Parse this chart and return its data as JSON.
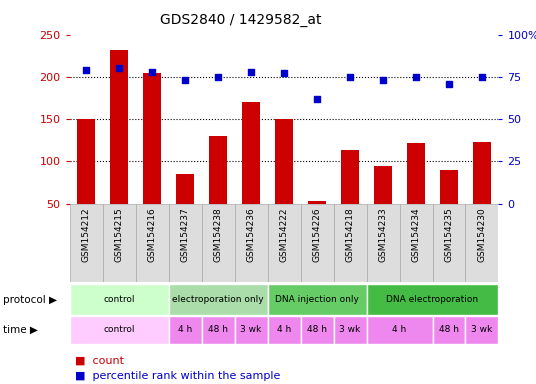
{
  "title": "GDS2840 / 1429582_at",
  "samples": [
    "GSM154212",
    "GSM154215",
    "GSM154216",
    "GSM154237",
    "GSM154238",
    "GSM154236",
    "GSM154222",
    "GSM154226",
    "GSM154218",
    "GSM154233",
    "GSM154234",
    "GSM154235",
    "GSM154230"
  ],
  "counts": [
    150,
    232,
    205,
    85,
    130,
    170,
    150,
    53,
    113,
    95,
    122,
    90,
    123
  ],
  "percentiles": [
    79,
    80,
    78,
    73,
    75,
    78,
    77,
    62,
    75,
    73,
    75,
    71,
    75
  ],
  "ylim_left": [
    50,
    250
  ],
  "ylim_right": [
    0,
    100
  ],
  "yticks_left": [
    50,
    100,
    150,
    200,
    250
  ],
  "yticks_right": [
    0,
    25,
    50,
    75,
    100
  ],
  "bar_color": "#cc0000",
  "dot_color": "#0000cc",
  "protocol_groups": [
    {
      "label": "control",
      "start": 0,
      "end": 3,
      "color": "#ccffcc"
    },
    {
      "label": "electroporation only",
      "start": 3,
      "end": 6,
      "color": "#aaddaa"
    },
    {
      "label": "DNA injection only",
      "start": 6,
      "end": 9,
      "color": "#66cc66"
    },
    {
      "label": "DNA electroporation",
      "start": 9,
      "end": 13,
      "color": "#44bb44"
    }
  ],
  "time_groups": [
    {
      "label": "control",
      "start": 0,
      "end": 3,
      "color": "#ffaaff"
    },
    {
      "label": "4 h",
      "start": 3,
      "end": 4,
      "color": "#ee88ee"
    },
    {
      "label": "48 h",
      "start": 4,
      "end": 5,
      "color": "#ee88ee"
    },
    {
      "label": "3 wk",
      "start": 5,
      "end": 6,
      "color": "#ee88ee"
    },
    {
      "label": "4 h",
      "start": 6,
      "end": 7,
      "color": "#ee88ee"
    },
    {
      "label": "48 h",
      "start": 7,
      "end": 8,
      "color": "#ee88ee"
    },
    {
      "label": "3 wk",
      "start": 8,
      "end": 9,
      "color": "#ee88ee"
    },
    {
      "label": "4 h",
      "start": 9,
      "end": 11,
      "color": "#ee88ee"
    },
    {
      "label": "48 h",
      "start": 11,
      "end": 12,
      "color": "#ee88ee"
    },
    {
      "label": "3 wk",
      "start": 12,
      "end": 13,
      "color": "#ee88ee"
    }
  ],
  "legend_count_label": "count",
  "legend_pct_label": "percentile rank within the sample",
  "left_axis_color": "#cc0000",
  "right_axis_color": "#0000cc",
  "bg_color": "#ffffff",
  "label_bg_color": "#dddddd",
  "label_edge_color": "#aaaaaa"
}
